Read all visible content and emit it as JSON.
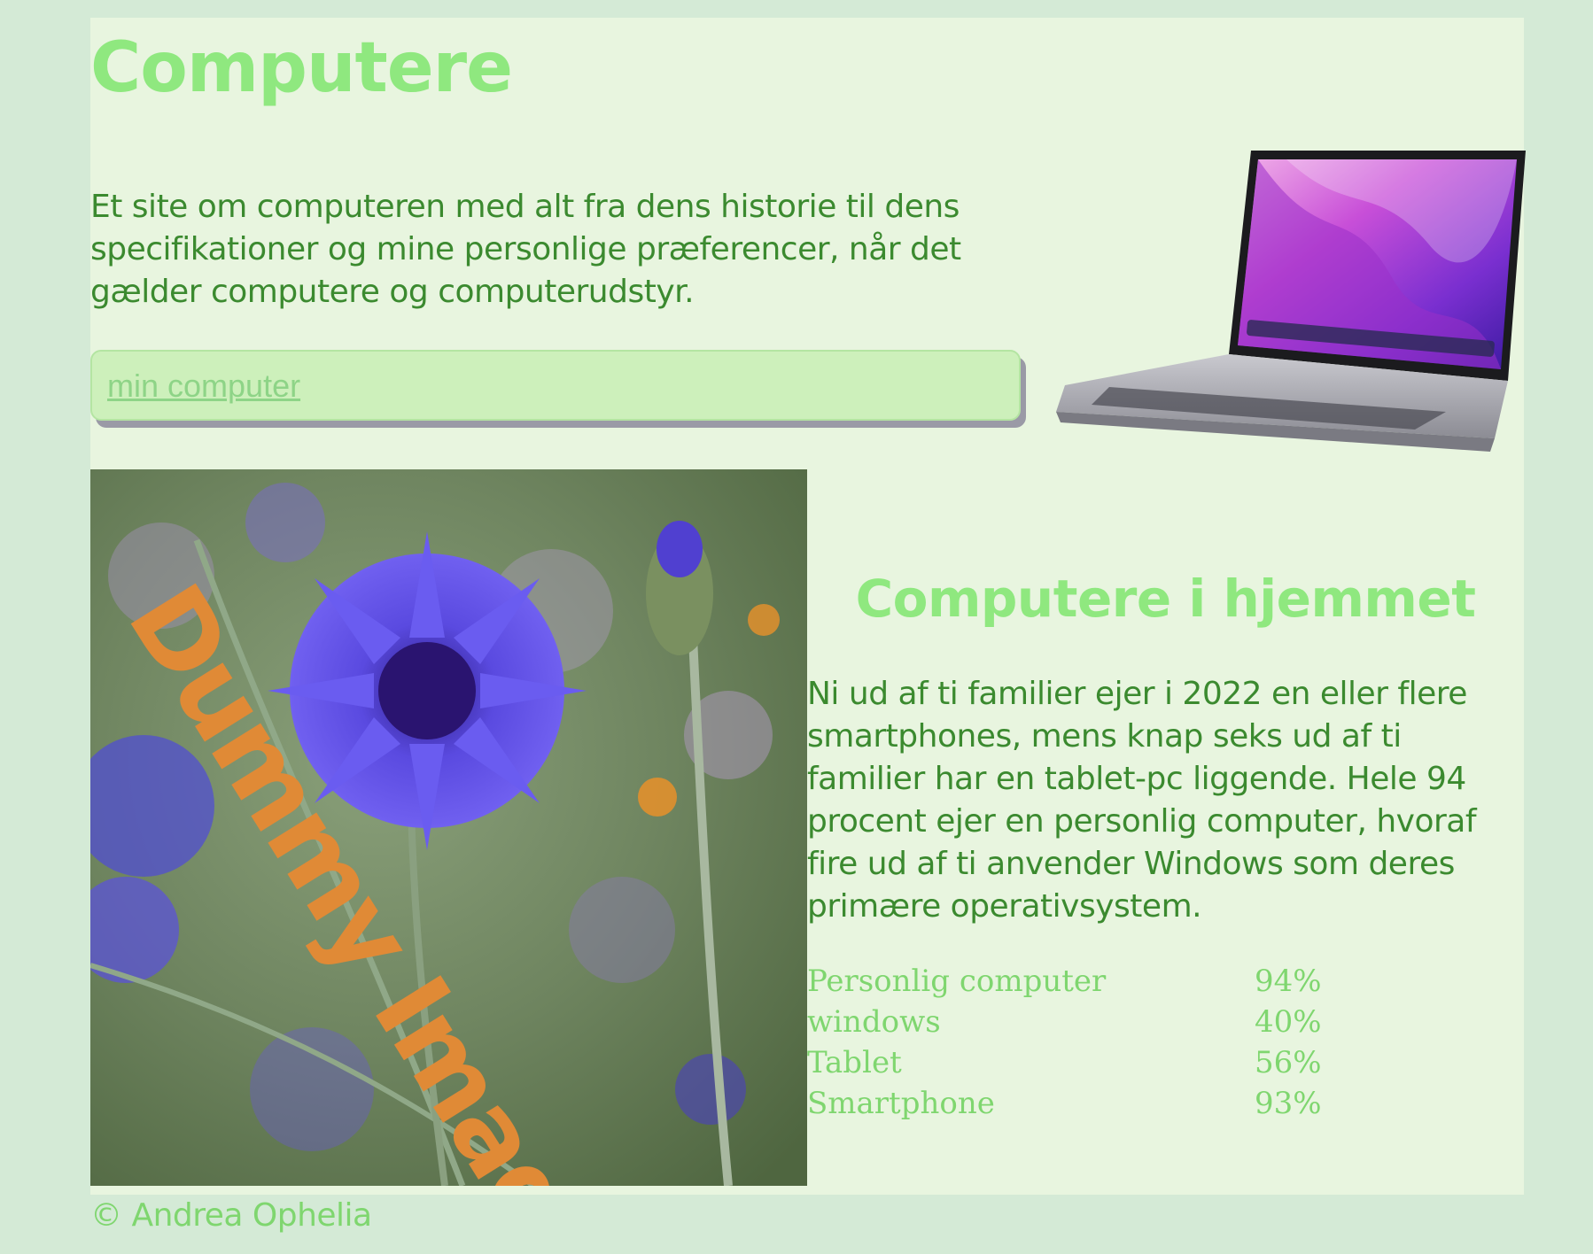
{
  "header": {
    "title": "Computere",
    "intro": "Et site om computeren med alt fra dens historie til dens specifikationer og mine personlige præferencer, når det gælder computere og computerudstyr."
  },
  "nav": {
    "link_label": "min computer"
  },
  "images": {
    "laptop": "laptop-image",
    "placeholder_text": "Dummy Image"
  },
  "section": {
    "title": "Computere i hjemmet",
    "text": "Ni ud af ti familier ejer i 2022 en eller flere smartphones, mens knap seks ud af ti familier har en tablet-pc liggende. Hele 94 procent ejer en personlig computer, hvoraf fire ud af ti anvender Windows som deres primære operativsystem."
  },
  "stats": [
    {
      "label": "Personlig computer",
      "value": "94%"
    },
    {
      "label": "windows",
      "value": "40%"
    },
    {
      "label": "Tablet",
      "value": "56%"
    },
    {
      "label": "Smartphone",
      "value": "93%"
    }
  ],
  "footer": {
    "copyright": "© Andrea Ophelia"
  },
  "colors": {
    "background": "#d4ead6",
    "panel": "#e8f5df",
    "heading": "#8fe87f",
    "text": "#3b8a2f",
    "accent_text": "#7fd66f",
    "nav_box": "#cdf0bb",
    "placeholder_text": "#e08a36"
  }
}
